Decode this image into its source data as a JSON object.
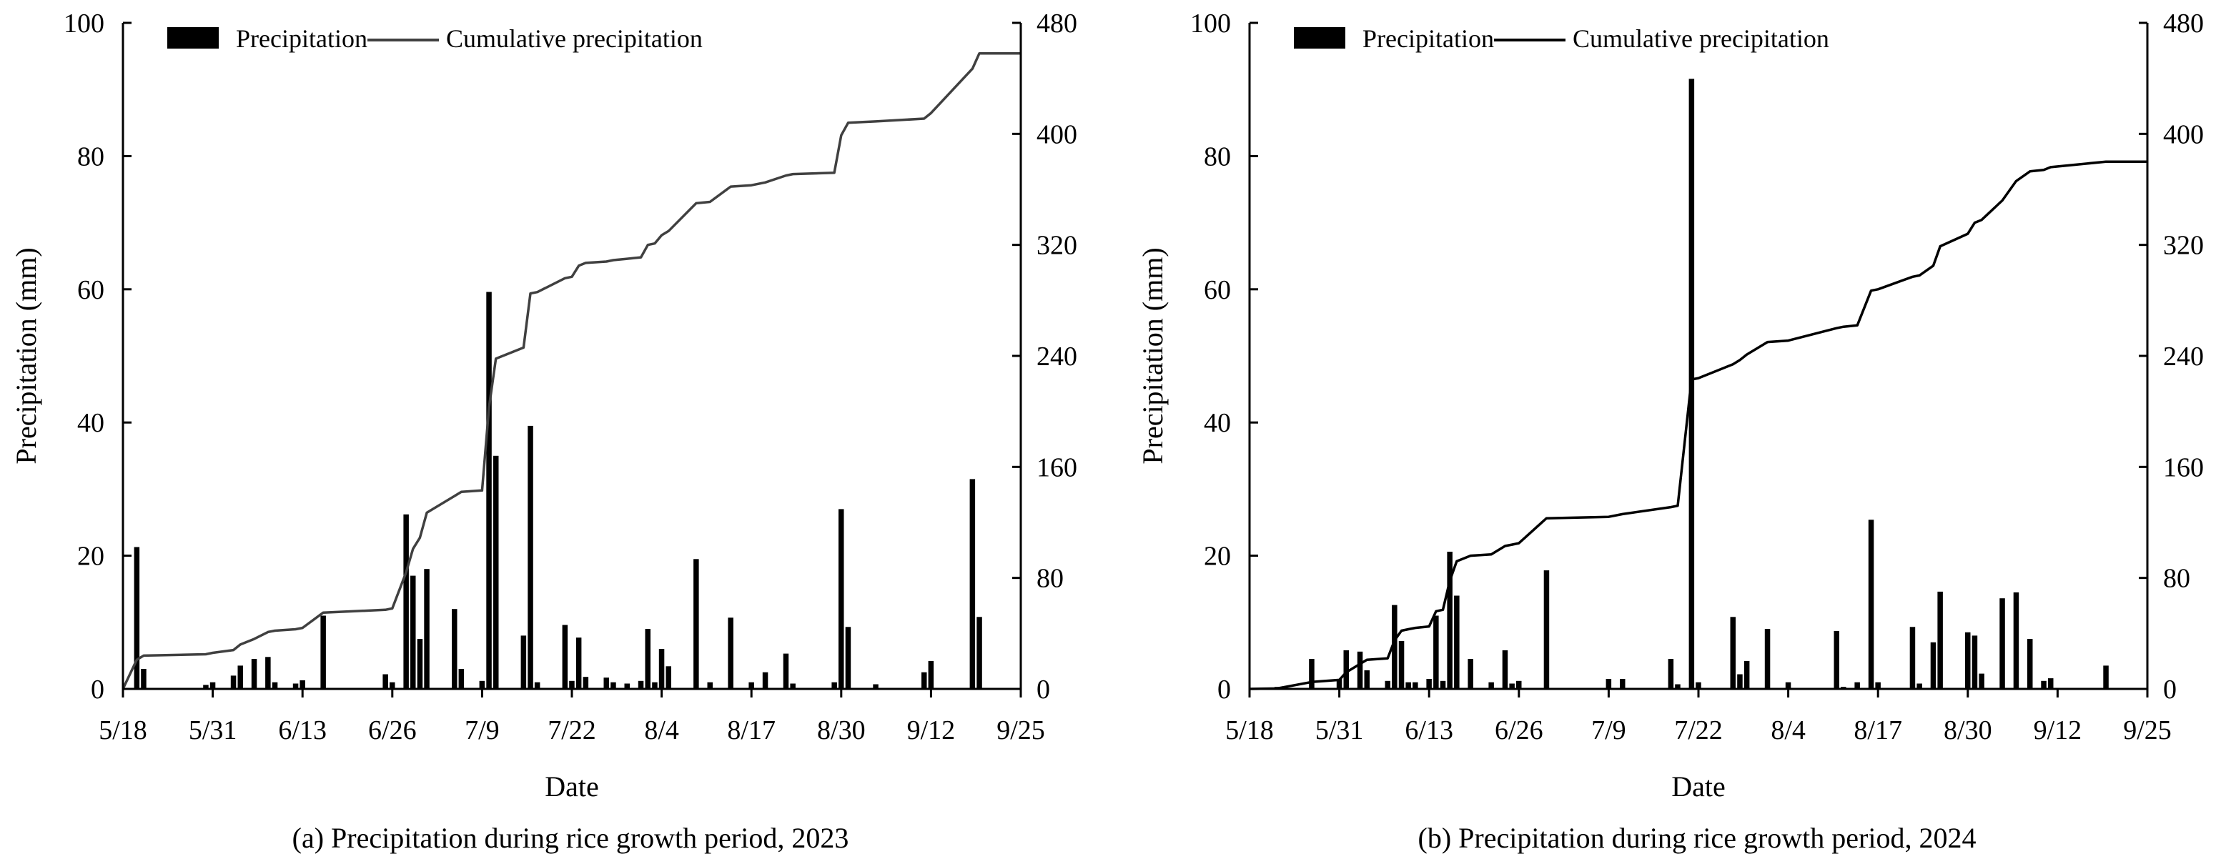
{
  "chart_data": [
    {
      "type": "bar+line",
      "panel": "a",
      "caption": "(a) Precipitation during rice growth period, 2023",
      "xlabel": "Date",
      "ylabel": "Precipitation (mm)",
      "y2label": "",
      "x_tick_labels": [
        "5/18",
        "5/31",
        "6/13",
        "6/26",
        "7/9",
        "7/22",
        "8/4",
        "8/17",
        "8/30",
        "9/12",
        "9/25"
      ],
      "y_ticks": [
        "0",
        "20",
        "40",
        "60",
        "80",
        "100"
      ],
      "y2_ticks": [
        "0",
        "80",
        "160",
        "240",
        "320",
        "400",
        "480"
      ],
      "ylim": [
        0,
        100
      ],
      "y2lim": [
        0,
        480
      ],
      "day_range": [
        0,
        130
      ],
      "legend": {
        "bar": "Precipitation",
        "line": "Cumulative precipitation",
        "placement": "top-left"
      },
      "line_color": "#404040",
      "daily_precipitation": [
        {
          "day": 2,
          "value": 21.3
        },
        {
          "day": 3,
          "value": 3.0
        },
        {
          "day": 12,
          "value": 0.6
        },
        {
          "day": 13,
          "value": 1.0
        },
        {
          "day": 16,
          "value": 2.0
        },
        {
          "day": 17,
          "value": 3.5
        },
        {
          "day": 19,
          "value": 4.5
        },
        {
          "day": 21,
          "value": 4.8
        },
        {
          "day": 22,
          "value": 1.0
        },
        {
          "day": 25,
          "value": 0.8
        },
        {
          "day": 26,
          "value": 1.3
        },
        {
          "day": 29,
          "value": 11.0
        },
        {
          "day": 38,
          "value": 2.2
        },
        {
          "day": 39,
          "value": 1.0
        },
        {
          "day": 41,
          "value": 26.2
        },
        {
          "day": 42,
          "value": 17.0
        },
        {
          "day": 43,
          "value": 7.5
        },
        {
          "day": 44,
          "value": 18.0
        },
        {
          "day": 48,
          "value": 12.0
        },
        {
          "day": 49,
          "value": 3.0
        },
        {
          "day": 52,
          "value": 1.2
        },
        {
          "day": 53,
          "value": 59.6
        },
        {
          "day": 54,
          "value": 35.0
        },
        {
          "day": 58,
          "value": 8.0
        },
        {
          "day": 59,
          "value": 39.5
        },
        {
          "day": 60,
          "value": 1.0
        },
        {
          "day": 64,
          "value": 9.6
        },
        {
          "day": 65,
          "value": 1.2
        },
        {
          "day": 66,
          "value": 7.7
        },
        {
          "day": 67,
          "value": 1.8
        },
        {
          "day": 70,
          "value": 1.7
        },
        {
          "day": 71,
          "value": 1.0
        },
        {
          "day": 73,
          "value": 0.8
        },
        {
          "day": 75,
          "value": 1.2
        },
        {
          "day": 76,
          "value": 9.0
        },
        {
          "day": 77,
          "value": 1.0
        },
        {
          "day": 78,
          "value": 6.0
        },
        {
          "day": 79,
          "value": 3.4
        },
        {
          "day": 83,
          "value": 19.5
        },
        {
          "day": 85,
          "value": 1.0
        },
        {
          "day": 88,
          "value": 10.7
        },
        {
          "day": 91,
          "value": 1.0
        },
        {
          "day": 93,
          "value": 2.5
        },
        {
          "day": 96,
          "value": 5.3
        },
        {
          "day": 97,
          "value": 0.8
        },
        {
          "day": 103,
          "value": 1.0
        },
        {
          "day": 104,
          "value": 27.0
        },
        {
          "day": 105,
          "value": 9.3
        },
        {
          "day": 109,
          "value": 0.7
        },
        {
          "day": 116,
          "value": 2.5
        },
        {
          "day": 117,
          "value": 4.2
        },
        {
          "day": 123,
          "value": 31.5
        },
        {
          "day": 124,
          "value": 10.8
        }
      ],
      "cumulative_precipitation": [
        {
          "day": 0,
          "value": 0
        },
        {
          "day": 2,
          "value": 21
        },
        {
          "day": 3,
          "value": 24
        },
        {
          "day": 12,
          "value": 25
        },
        {
          "day": 13,
          "value": 26
        },
        {
          "day": 16,
          "value": 28
        },
        {
          "day": 17,
          "value": 32
        },
        {
          "day": 19,
          "value": 36
        },
        {
          "day": 21,
          "value": 41
        },
        {
          "day": 22,
          "value": 42
        },
        {
          "day": 25,
          "value": 43
        },
        {
          "day": 26,
          "value": 44
        },
        {
          "day": 29,
          "value": 55
        },
        {
          "day": 38,
          "value": 57
        },
        {
          "day": 39,
          "value": 58
        },
        {
          "day": 41,
          "value": 84
        },
        {
          "day": 42,
          "value": 101
        },
        {
          "day": 43,
          "value": 109
        },
        {
          "day": 44,
          "value": 127
        },
        {
          "day": 48,
          "value": 139
        },
        {
          "day": 49,
          "value": 142
        },
        {
          "day": 52,
          "value": 143
        },
        {
          "day": 53,
          "value": 203
        },
        {
          "day": 54,
          "value": 238
        },
        {
          "day": 58,
          "value": 246
        },
        {
          "day": 59,
          "value": 285
        },
        {
          "day": 60,
          "value": 286
        },
        {
          "day": 64,
          "value": 296
        },
        {
          "day": 65,
          "value": 297
        },
        {
          "day": 66,
          "value": 305
        },
        {
          "day": 67,
          "value": 307
        },
        {
          "day": 70,
          "value": 308
        },
        {
          "day": 71,
          "value": 309
        },
        {
          "day": 73,
          "value": 310
        },
        {
          "day": 75,
          "value": 311
        },
        {
          "day": 76,
          "value": 320
        },
        {
          "day": 77,
          "value": 321
        },
        {
          "day": 78,
          "value": 327
        },
        {
          "day": 79,
          "value": 330
        },
        {
          "day": 83,
          "value": 350
        },
        {
          "day": 85,
          "value": 351
        },
        {
          "day": 88,
          "value": 362
        },
        {
          "day": 91,
          "value": 363
        },
        {
          "day": 93,
          "value": 365
        },
        {
          "day": 96,
          "value": 370
        },
        {
          "day": 97,
          "value": 371
        },
        {
          "day": 103,
          "value": 372
        },
        {
          "day": 104,
          "value": 399
        },
        {
          "day": 105,
          "value": 408
        },
        {
          "day": 109,
          "value": 409
        },
        {
          "day": 116,
          "value": 411
        },
        {
          "day": 117,
          "value": 415
        },
        {
          "day": 123,
          "value": 447
        },
        {
          "day": 124,
          "value": 458
        },
        {
          "day": 130,
          "value": 458
        }
      ]
    },
    {
      "type": "bar+line",
      "panel": "b",
      "caption": "(b) Precipitation during rice growth period, 2024",
      "xlabel": "Date",
      "ylabel": "Precipitation (mm)",
      "y2label": "",
      "x_tick_labels": [
        "5/18",
        "5/31",
        "6/13",
        "6/26",
        "7/9",
        "7/22",
        "8/4",
        "8/17",
        "8/30",
        "9/12",
        "9/25"
      ],
      "y_ticks": [
        "0",
        "20",
        "40",
        "60",
        "80",
        "100"
      ],
      "y2_ticks": [
        "0",
        "80",
        "160",
        "240",
        "320",
        "400",
        "480"
      ],
      "ylim": [
        0,
        100
      ],
      "y2lim": [
        0,
        480
      ],
      "day_range": [
        0,
        130
      ],
      "legend": {
        "bar": "Precipitation",
        "line": "Cumulative precipitation",
        "placement": "top-left"
      },
      "line_color": "#000000",
      "daily_precipitation": [
        {
          "day": 4,
          "value": 0.3
        },
        {
          "day": 9,
          "value": 4.5
        },
        {
          "day": 13,
          "value": 1.5
        },
        {
          "day": 14,
          "value": 5.8
        },
        {
          "day": 16,
          "value": 5.6
        },
        {
          "day": 17,
          "value": 2.8
        },
        {
          "day": 20,
          "value": 1.2
        },
        {
          "day": 21,
          "value": 12.6
        },
        {
          "day": 22,
          "value": 7.2
        },
        {
          "day": 23,
          "value": 1.0
        },
        {
          "day": 24,
          "value": 1.0
        },
        {
          "day": 26,
          "value": 1.5
        },
        {
          "day": 27,
          "value": 11.0
        },
        {
          "day": 28,
          "value": 1.2
        },
        {
          "day": 29,
          "value": 20.6
        },
        {
          "day": 30,
          "value": 14.0
        },
        {
          "day": 32,
          "value": 4.5
        },
        {
          "day": 35,
          "value": 1.0
        },
        {
          "day": 37,
          "value": 5.8
        },
        {
          "day": 38,
          "value": 0.8
        },
        {
          "day": 39,
          "value": 1.2
        },
        {
          "day": 43,
          "value": 17.8
        },
        {
          "day": 52,
          "value": 1.5
        },
        {
          "day": 54,
          "value": 1.5
        },
        {
          "day": 61,
          "value": 4.5
        },
        {
          "day": 62,
          "value": 0.7
        },
        {
          "day": 64,
          "value": 91.6
        },
        {
          "day": 65,
          "value": 1.0
        },
        {
          "day": 70,
          "value": 10.8
        },
        {
          "day": 71,
          "value": 2.2
        },
        {
          "day": 72,
          "value": 4.2
        },
        {
          "day": 75,
          "value": 9.0
        },
        {
          "day": 78,
          "value": 1.0
        },
        {
          "day": 85,
          "value": 8.7
        },
        {
          "day": 86,
          "value": 0.3
        },
        {
          "day": 88,
          "value": 1.0
        },
        {
          "day": 90,
          "value": 25.4
        },
        {
          "day": 91,
          "value": 1.0
        },
        {
          "day": 96,
          "value": 9.3
        },
        {
          "day": 97,
          "value": 0.8
        },
        {
          "day": 99,
          "value": 7.0
        },
        {
          "day": 100,
          "value": 14.6
        },
        {
          "day": 104,
          "value": 8.5
        },
        {
          "day": 105,
          "value": 8.0
        },
        {
          "day": 106,
          "value": 2.3
        },
        {
          "day": 109,
          "value": 13.6
        },
        {
          "day": 111,
          "value": 14.5
        },
        {
          "day": 113,
          "value": 7.5
        },
        {
          "day": 115,
          "value": 1.2
        },
        {
          "day": 116,
          "value": 1.6
        },
        {
          "day": 124,
          "value": 3.5
        }
      ],
      "cumulative_precipitation": [
        {
          "day": 0,
          "value": 0
        },
        {
          "day": 4,
          "value": 0.3
        },
        {
          "day": 9,
          "value": 5
        },
        {
          "day": 13,
          "value": 6.5
        },
        {
          "day": 14,
          "value": 12
        },
        {
          "day": 16,
          "value": 18
        },
        {
          "day": 17,
          "value": 21
        },
        {
          "day": 20,
          "value": 22
        },
        {
          "day": 21,
          "value": 35
        },
        {
          "day": 22,
          "value": 42
        },
        {
          "day": 23,
          "value": 43
        },
        {
          "day": 24,
          "value": 44
        },
        {
          "day": 26,
          "value": 45
        },
        {
          "day": 27,
          "value": 56
        },
        {
          "day": 28,
          "value": 57
        },
        {
          "day": 29,
          "value": 78
        },
        {
          "day": 30,
          "value": 92
        },
        {
          "day": 32,
          "value": 96
        },
        {
          "day": 35,
          "value": 97
        },
        {
          "day": 37,
          "value": 103
        },
        {
          "day": 38,
          "value": 104
        },
        {
          "day": 39,
          "value": 105
        },
        {
          "day": 43,
          "value": 123
        },
        {
          "day": 52,
          "value": 124
        },
        {
          "day": 54,
          "value": 126
        },
        {
          "day": 61,
          "value": 131
        },
        {
          "day": 62,
          "value": 132
        },
        {
          "day": 64,
          "value": 223
        },
        {
          "day": 65,
          "value": 224
        },
        {
          "day": 70,
          "value": 234
        },
        {
          "day": 71,
          "value": 237
        },
        {
          "day": 72,
          "value": 241
        },
        {
          "day": 75,
          "value": 250
        },
        {
          "day": 78,
          "value": 251
        },
        {
          "day": 85,
          "value": 260
        },
        {
          "day": 86,
          "value": 261
        },
        {
          "day": 88,
          "value": 262
        },
        {
          "day": 90,
          "value": 287
        },
        {
          "day": 91,
          "value": 288
        },
        {
          "day": 96,
          "value": 297
        },
        {
          "day": 97,
          "value": 298
        },
        {
          "day": 99,
          "value": 305
        },
        {
          "day": 100,
          "value": 319
        },
        {
          "day": 104,
          "value": 328
        },
        {
          "day": 105,
          "value": 336
        },
        {
          "day": 106,
          "value": 338
        },
        {
          "day": 109,
          "value": 352
        },
        {
          "day": 111,
          "value": 366
        },
        {
          "day": 113,
          "value": 373
        },
        {
          "day": 115,
          "value": 374
        },
        {
          "day": 116,
          "value": 376
        },
        {
          "day": 124,
          "value": 380
        },
        {
          "day": 130,
          "value": 380
        }
      ]
    }
  ]
}
